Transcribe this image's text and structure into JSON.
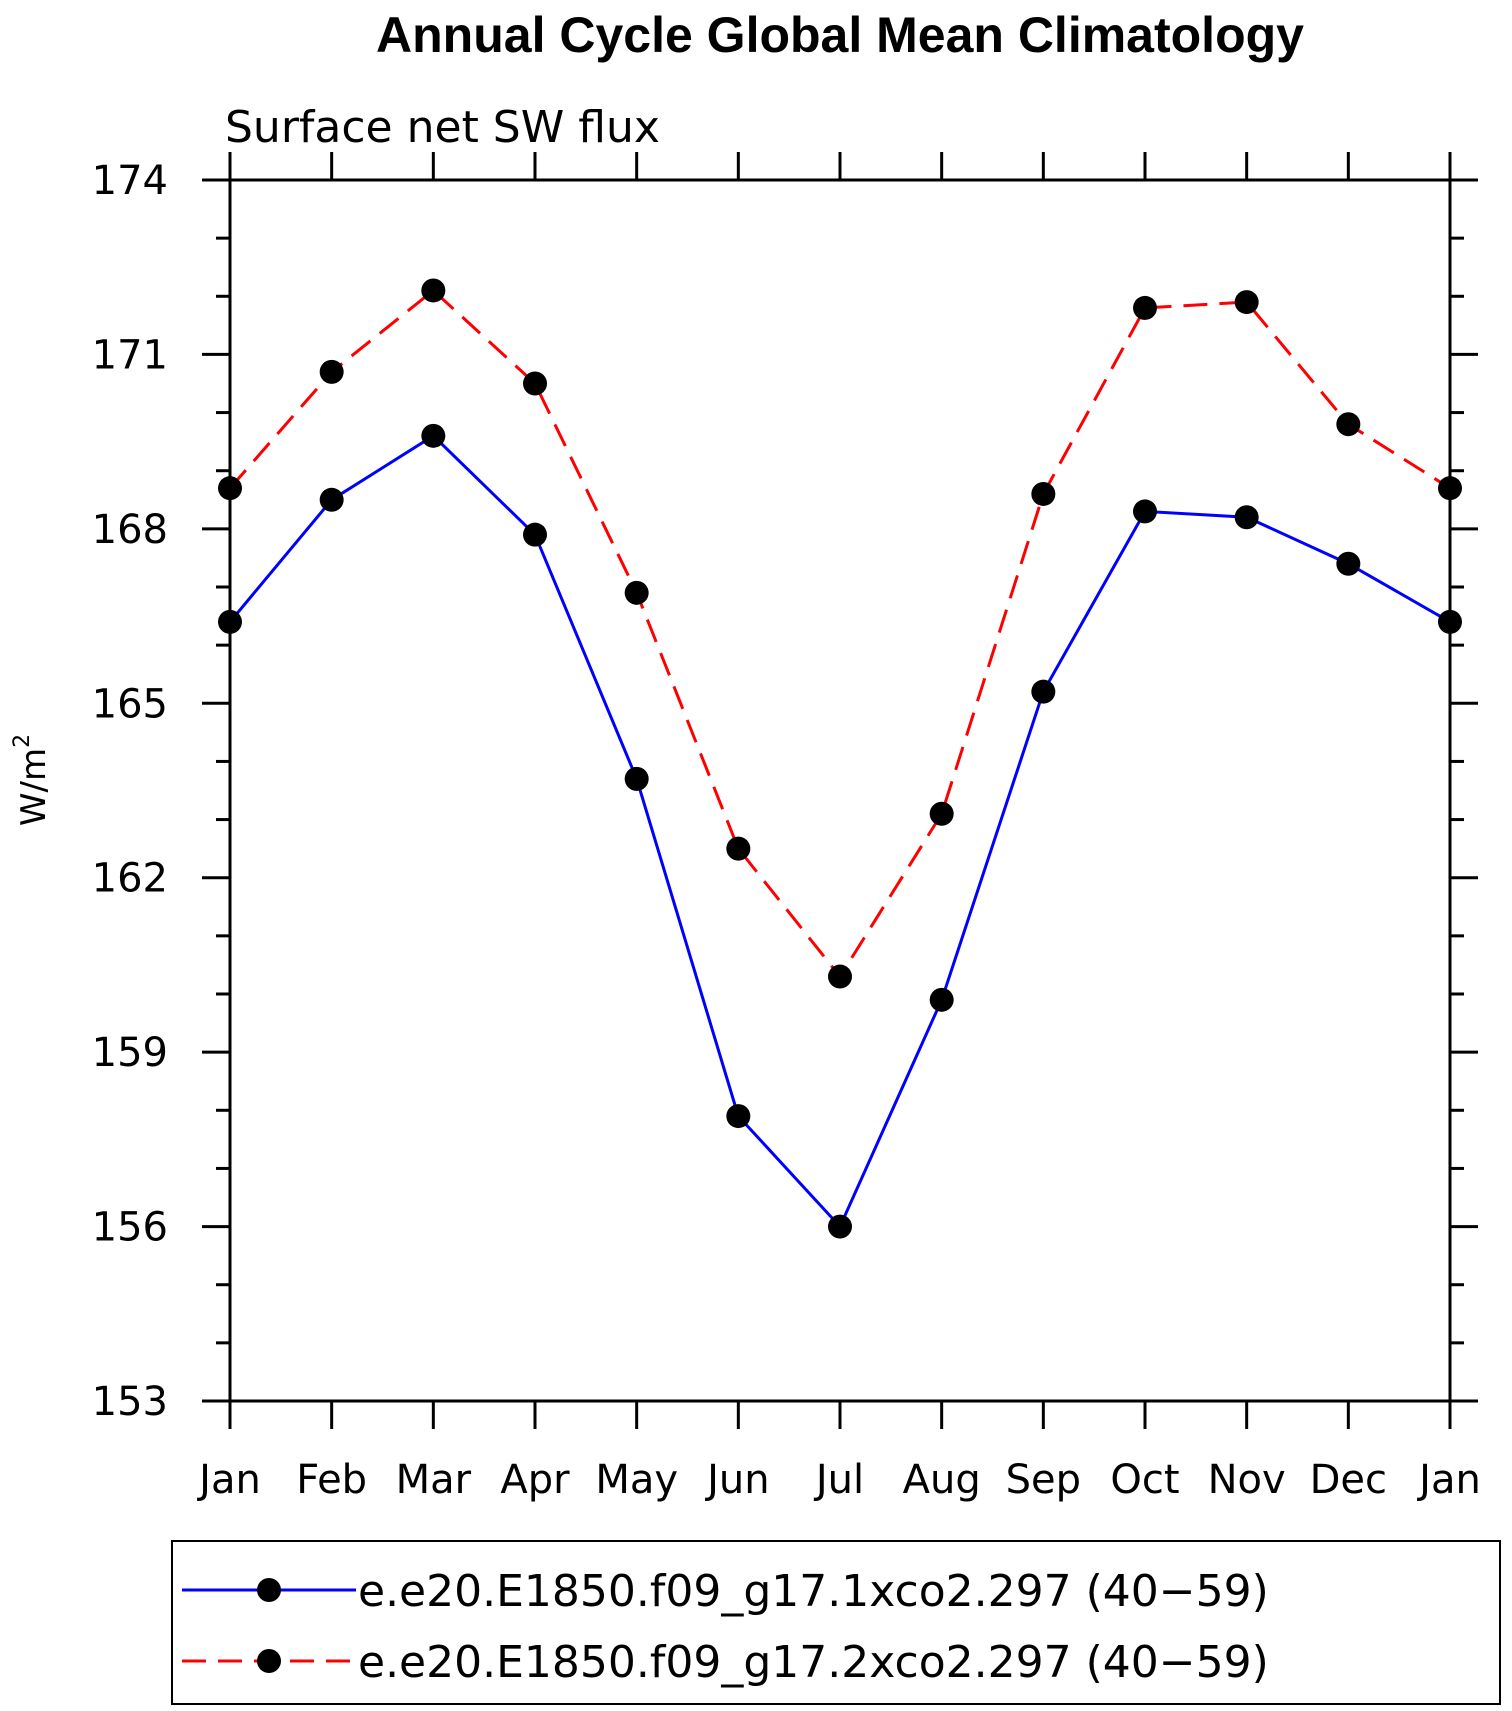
{
  "chart_data": {
    "type": "line",
    "title": "Annual Cycle Global Mean Climatology",
    "subtitle": "Surface net SW flux",
    "ylabel": "W/m",
    "ylabel_sup": "2",
    "categories": [
      "Jan",
      "Feb",
      "Mar",
      "Apr",
      "May",
      "Jun",
      "Jul",
      "Aug",
      "Sep",
      "Oct",
      "Nov",
      "Dec",
      "Jan"
    ],
    "ylim": [
      153,
      174
    ],
    "yticks": [
      153,
      156,
      159,
      162,
      165,
      168,
      171,
      174
    ],
    "y_minor_step": 1,
    "grid": false,
    "legend_position": "bottom",
    "series": [
      {
        "name": "e.e20.E1850.f09_g17.1xco2.297 (40−59)",
        "color": "#0000ff",
        "dash": "solid",
        "marker": "filled-circle",
        "values": [
          166.4,
          168.5,
          169.6,
          167.9,
          163.7,
          157.9,
          156.0,
          159.9,
          165.2,
          168.3,
          168.2,
          167.4,
          166.4
        ]
      },
      {
        "name": "e.e20.E1850.f09_g17.2xco2.297 (40−59)",
        "color": "#ff0000",
        "dash": "dashed",
        "marker": "filled-circle",
        "values": [
          168.7,
          170.7,
          172.1,
          170.5,
          166.9,
          162.5,
          160.3,
          163.1,
          168.6,
          171.8,
          171.9,
          169.8,
          168.7
        ]
      }
    ]
  }
}
